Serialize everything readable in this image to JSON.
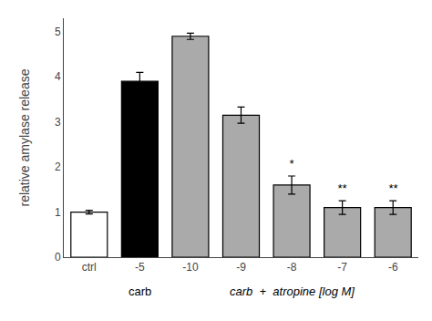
{
  "chart_data": {
    "type": "bar",
    "categories": [
      "ctrl",
      "-5",
      "-10",
      "-9",
      "-8",
      "-7",
      "-6"
    ],
    "values": [
      1.0,
      3.9,
      4.9,
      3.15,
      1.6,
      1.1,
      1.1
    ],
    "errors": [
      0.04,
      0.2,
      0.07,
      0.18,
      0.2,
      0.15,
      0.15
    ],
    "colors": [
      "#ffffff",
      "#000000",
      "#aaaaaa",
      "#aaaaaa",
      "#aaaaaa",
      "#aaaaaa",
      "#aaaaaa"
    ],
    "ylabel": "relative amylase release",
    "ylim": [
      0,
      5.3
    ],
    "yticks": [
      0,
      1,
      2,
      3,
      4,
      5
    ],
    "grid": false,
    "annotations": [
      {
        "x": "-8",
        "text": "*"
      },
      {
        "x": "-7",
        "text": "**"
      },
      {
        "x": "-6",
        "text": "**"
      }
    ],
    "x_groups": [
      {
        "label": "carb",
        "categories": [
          "-5"
        ]
      },
      {
        "label": "carb  +  atropine [log M]",
        "categories": [
          "-10",
          "-9",
          "-8",
          "-7",
          "-6"
        ]
      }
    ]
  }
}
